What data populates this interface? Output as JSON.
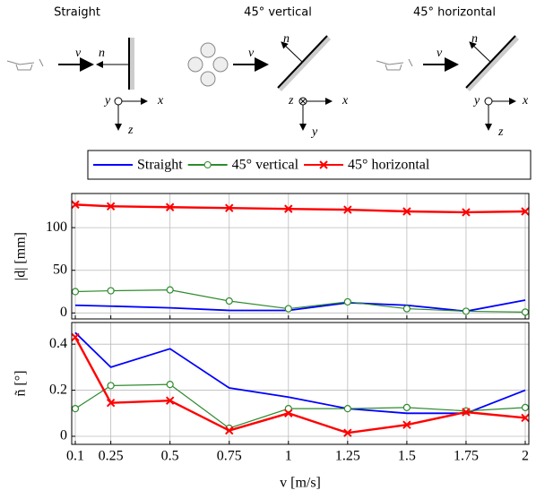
{
  "diagram": {
    "panels": [
      {
        "title": "Straight",
        "labels": [
          "v",
          "n",
          "y",
          "x",
          "z"
        ]
      },
      {
        "title": "45° vertical",
        "labels": [
          "v",
          "n",
          "z",
          "x",
          "y"
        ]
      },
      {
        "title": "45° horizontal",
        "labels": [
          "v",
          "n",
          "y",
          "x",
          "z"
        ]
      }
    ]
  },
  "chart_data": [
    {
      "type": "line",
      "ylabel": "|d| [mm]",
      "grid": true,
      "legend": "top",
      "x": [
        0.1,
        0.25,
        0.5,
        0.75,
        1,
        1.25,
        1.5,
        1.75,
        2
      ],
      "xlim": [
        0.1,
        2
      ],
      "xticks": [
        0.1,
        0.25,
        0.5,
        0.75,
        1,
        1.25,
        1.5,
        1.75,
        2
      ],
      "ylim": [
        -7,
        140
      ],
      "yticks": [
        0,
        50,
        100
      ],
      "series": [
        {
          "name": "Straight",
          "color": "#0000ff",
          "marker": "none",
          "values": [
            9,
            8,
            6,
            3,
            3,
            12,
            9,
            2,
            15
          ]
        },
        {
          "name": "45° vertical",
          "color": "#2e8b2e",
          "marker": "circle",
          "values": [
            25,
            26,
            27,
            14,
            5,
            13,
            5,
            2,
            1
          ]
        },
        {
          "name": "45° horizontal",
          "color": "#ff0000",
          "marker": "cross",
          "values": [
            127,
            125,
            124,
            123,
            122,
            121,
            119,
            118,
            119
          ]
        }
      ]
    },
    {
      "type": "line",
      "ylabel": "ñ [°]",
      "xlabel": "v [m/s]",
      "grid": true,
      "x": [
        0.1,
        0.25,
        0.5,
        0.75,
        1,
        1.25,
        1.5,
        1.75,
        2
      ],
      "xlim": [
        0.1,
        2
      ],
      "xticks": [
        0.1,
        0.25,
        0.5,
        0.75,
        1,
        1.25,
        1.5,
        1.75,
        2
      ],
      "ylim": [
        -0.035,
        0.494
      ],
      "yticks": [
        0,
        0.2,
        0.4
      ],
      "series": [
        {
          "name": "Straight",
          "color": "#0000ff",
          "marker": "none",
          "values": [
            0.45,
            0.3,
            0.38,
            0.21,
            0.17,
            0.12,
            0.1,
            0.1,
            0.2
          ]
        },
        {
          "name": "45° vertical",
          "color": "#2e8b2e",
          "marker": "circle",
          "values": [
            0.12,
            0.22,
            0.225,
            0.035,
            0.12,
            0.12,
            0.125,
            0.11,
            0.125
          ]
        },
        {
          "name": "45° horizontal",
          "color": "#ff0000",
          "marker": "cross",
          "values": [
            0.43,
            0.145,
            0.155,
            0.025,
            0.1,
            0.015,
            0.05,
            0.105,
            0.08
          ]
        }
      ]
    }
  ]
}
